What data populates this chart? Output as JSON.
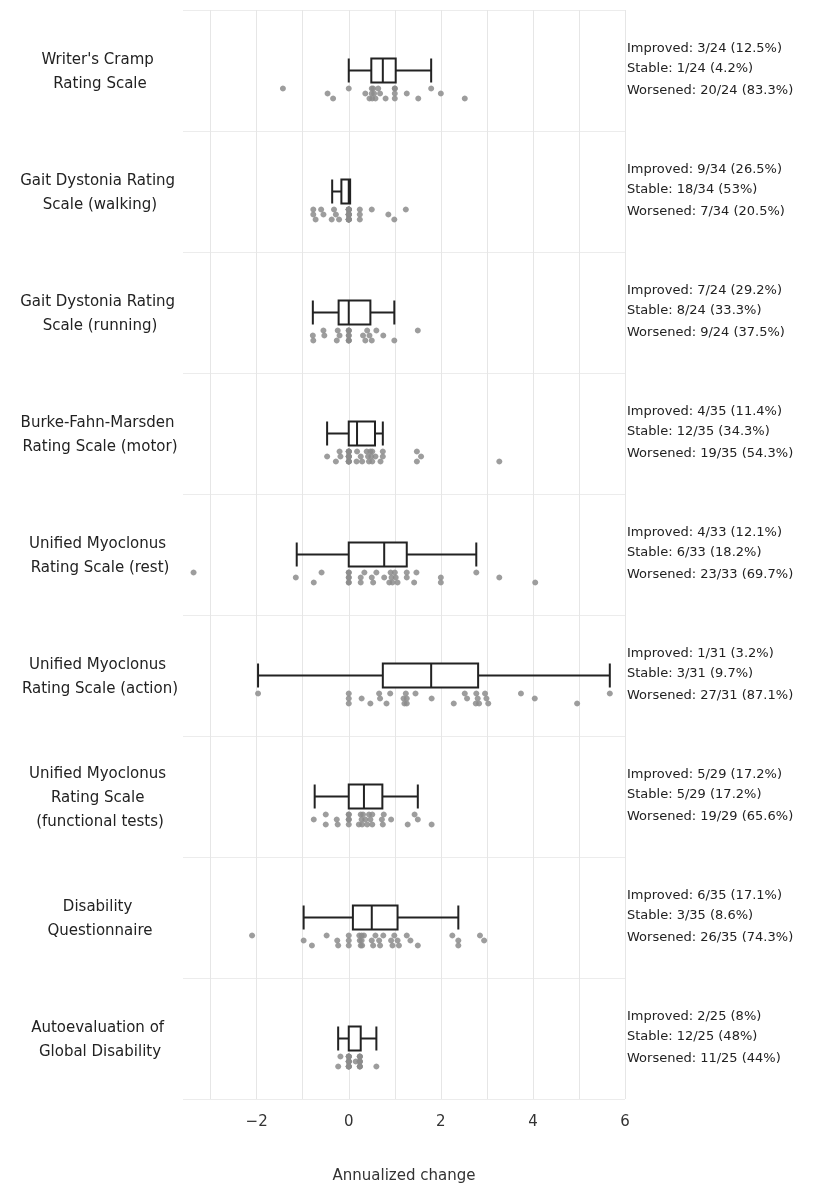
{
  "chart_data": {
    "type": "box",
    "orientation": "horizontal",
    "xlabel": "Annualized change",
    "categories": [
      "Writer's Cramp Rating Scale",
      "Gait Dystonia Rating Scale (walking)",
      "Gait Dystonia Rating Scale (running)",
      "Burke-Fahn-Marsden Rating Scale (motor)",
      "Unified Myoclonus Rating Scale (rest)",
      "Unified Myoclonus Rating Scale (action)",
      "Unified Myoclonus Rating Scale (functional tests)",
      "Disability Questionnaire",
      "Autoevaluation of Global Disability"
    ],
    "color": "#222222",
    "boxes": [
      {
        "low": 0,
        "q1": 0.49,
        "median": 0.74,
        "q3": 1.02,
        "high": 1.79
      },
      {
        "low": -0.36,
        "q1": -0.16,
        "median": 0,
        "q3": 0.03,
        "high": 0.03
      },
      {
        "low": -0.78,
        "q1": -0.22,
        "median": 0,
        "q3": 0.47,
        "high": 0.99
      },
      {
        "low": -0.47,
        "q1": 0,
        "median": 0.18,
        "q3": 0.57,
        "high": 0.74
      },
      {
        "low": -1.13,
        "q1": 0,
        "median": 0.77,
        "q3": 1.26,
        "high": 2.77
      },
      {
        "low": -1.97,
        "q1": 0.74,
        "median": 1.79,
        "q3": 2.81,
        "high": 5.67
      },
      {
        "low": -0.74,
        "q1": 0,
        "median": 0.33,
        "q3": 0.73,
        "high": 1.5
      },
      {
        "low": -0.98,
        "q1": 0.09,
        "median": 0.5,
        "q3": 1.06,
        "high": 2.38
      },
      {
        "low": -0.23,
        "q1": 0,
        "median": 0,
        "q3": 0.26,
        "high": 0.6
      }
    ],
    "series": [
      {
        "type": "scatter",
        "color": "#8c8c8c",
        "x": [
          "Writer's Cramp Rating Scale",
          "Writer's Cramp Rating Scale",
          "Writer's Cramp Rating Scale",
          "Writer's Cramp Rating Scale",
          "Writer's Cramp Rating Scale",
          "Writer's Cramp Rating Scale",
          "Writer's Cramp Rating Scale",
          "Writer's Cramp Rating Scale",
          "Writer's Cramp Rating Scale",
          "Writer's Cramp Rating Scale",
          "Writer's Cramp Rating Scale",
          "Writer's Cramp Rating Scale",
          "Writer's Cramp Rating Scale",
          "Writer's Cramp Rating Scale",
          "Writer's Cramp Rating Scale",
          "Writer's Cramp Rating Scale",
          "Writer's Cramp Rating Scale",
          "Writer's Cramp Rating Scale",
          "Writer's Cramp Rating Scale",
          "Writer's Cramp Rating Scale",
          "Writer's Cramp Rating Scale",
          "Writer's Cramp Rating Scale",
          "Writer's Cramp Rating Scale",
          "Writer's Cramp Rating Scale",
          "Gait Dystonia Rating Scale (walking)",
          "Gait Dystonia Rating Scale (walking)",
          "Gait Dystonia Rating Scale (walking)",
          "Gait Dystonia Rating Scale (walking)",
          "Gait Dystonia Rating Scale (walking)",
          "Gait Dystonia Rating Scale (walking)",
          "Gait Dystonia Rating Scale (walking)",
          "Gait Dystonia Rating Scale (walking)",
          "Gait Dystonia Rating Scale (walking)",
          "Gait Dystonia Rating Scale (walking)",
          "Gait Dystonia Rating Scale (walking)",
          "Gait Dystonia Rating Scale (walking)",
          "Gait Dystonia Rating Scale (walking)",
          "Gait Dystonia Rating Scale (walking)",
          "Gait Dystonia Rating Scale (walking)",
          "Gait Dystonia Rating Scale (walking)",
          "Gait Dystonia Rating Scale (walking)",
          "Gait Dystonia Rating Scale (walking)",
          "Gait Dystonia Rating Scale (walking)",
          "Gait Dystonia Rating Scale (walking)",
          "Gait Dystonia Rating Scale (walking)",
          "Gait Dystonia Rating Scale (walking)",
          "Gait Dystonia Rating Scale (walking)",
          "Gait Dystonia Rating Scale (walking)",
          "Gait Dystonia Rating Scale (walking)",
          "Gait Dystonia Rating Scale (walking)",
          "Gait Dystonia Rating Scale (walking)",
          "Gait Dystonia Rating Scale (walking)",
          "Gait Dystonia Rating Scale (walking)",
          "Gait Dystonia Rating Scale (walking)",
          "Gait Dystonia Rating Scale (walking)",
          "Gait Dystonia Rating Scale (walking)",
          "Gait Dystonia Rating Scale (walking)",
          "Gait Dystonia Rating Scale (walking)",
          "Gait Dystonia Rating Scale (running)",
          "Gait Dystonia Rating Scale (running)",
          "Gait Dystonia Rating Scale (running)",
          "Gait Dystonia Rating Scale (running)",
          "Gait Dystonia Rating Scale (running)",
          "Gait Dystonia Rating Scale (running)",
          "Gait Dystonia Rating Scale (running)",
          "Gait Dystonia Rating Scale (running)",
          "Gait Dystonia Rating Scale (running)",
          "Gait Dystonia Rating Scale (running)",
          "Gait Dystonia Rating Scale (running)",
          "Gait Dystonia Rating Scale (running)",
          "Gait Dystonia Rating Scale (running)",
          "Gait Dystonia Rating Scale (running)",
          "Gait Dystonia Rating Scale (running)",
          "Gait Dystonia Rating Scale (running)",
          "Gait Dystonia Rating Scale (running)",
          "Gait Dystonia Rating Scale (running)",
          "Gait Dystonia Rating Scale (running)",
          "Gait Dystonia Rating Scale (running)",
          "Gait Dystonia Rating Scale (running)",
          "Gait Dystonia Rating Scale (running)",
          "Gait Dystonia Rating Scale (running)",
          "Gait Dystonia Rating Scale (running)",
          "Burke-Fahn-Marsden Rating Scale (motor)",
          "Burke-Fahn-Marsden Rating Scale (motor)",
          "Burke-Fahn-Marsden Rating Scale (motor)",
          "Burke-Fahn-Marsden Rating Scale (motor)",
          "Burke-Fahn-Marsden Rating Scale (motor)",
          "Burke-Fahn-Marsden Rating Scale (motor)",
          "Burke-Fahn-Marsden Rating Scale (motor)",
          "Burke-Fahn-Marsden Rating Scale (motor)",
          "Burke-Fahn-Marsden Rating Scale (motor)",
          "Burke-Fahn-Marsden Rating Scale (motor)",
          "Burke-Fahn-Marsden Rating Scale (motor)",
          "Burke-Fahn-Marsden Rating Scale (motor)",
          "Burke-Fahn-Marsden Rating Scale (motor)",
          "Burke-Fahn-Marsden Rating Scale (motor)",
          "Burke-Fahn-Marsden Rating Scale (motor)",
          "Burke-Fahn-Marsden Rating Scale (motor)",
          "Burke-Fahn-Marsden Rating Scale (motor)",
          "Burke-Fahn-Marsden Rating Scale (motor)",
          "Burke-Fahn-Marsden Rating Scale (motor)",
          "Burke-Fahn-Marsden Rating Scale (motor)",
          "Burke-Fahn-Marsden Rating Scale (motor)",
          "Burke-Fahn-Marsden Rating Scale (motor)",
          "Burke-Fahn-Marsden Rating Scale (motor)",
          "Burke-Fahn-Marsden Rating Scale (motor)",
          "Burke-Fahn-Marsden Rating Scale (motor)",
          "Burke-Fahn-Marsden Rating Scale (motor)",
          "Burke-Fahn-Marsden Rating Scale (motor)",
          "Burke-Fahn-Marsden Rating Scale (motor)",
          "Burke-Fahn-Marsden Rating Scale (motor)",
          "Burke-Fahn-Marsden Rating Scale (motor)",
          "Burke-Fahn-Marsden Rating Scale (motor)",
          "Burke-Fahn-Marsden Rating Scale (motor)",
          "Burke-Fahn-Marsden Rating Scale (motor)",
          "Burke-Fahn-Marsden Rating Scale (motor)",
          "Burke-Fahn-Marsden Rating Scale (motor)",
          "Unified Myoclonus Rating Scale (rest)",
          "Unified Myoclonus Rating Scale (rest)",
          "Unified Myoclonus Rating Scale (rest)",
          "Unified Myoclonus Rating Scale (rest)",
          "Unified Myoclonus Rating Scale (rest)",
          "Unified Myoclonus Rating Scale (rest)",
          "Unified Myoclonus Rating Scale (rest)",
          "Unified Myoclonus Rating Scale (rest)",
          "Unified Myoclonus Rating Scale (rest)",
          "Unified Myoclonus Rating Scale (rest)",
          "Unified Myoclonus Rating Scale (rest)",
          "Unified Myoclonus Rating Scale (rest)",
          "Unified Myoclonus Rating Scale (rest)",
          "Unified Myoclonus Rating Scale (rest)",
          "Unified Myoclonus Rating Scale (rest)",
          "Unified Myoclonus Rating Scale (rest)",
          "Unified Myoclonus Rating Scale (rest)",
          "Unified Myoclonus Rating Scale (rest)",
          "Unified Myoclonus Rating Scale (rest)",
          "Unified Myoclonus Rating Scale (rest)",
          "Unified Myoclonus Rating Scale (rest)",
          "Unified Myoclonus Rating Scale (rest)",
          "Unified Myoclonus Rating Scale (rest)",
          "Unified Myoclonus Rating Scale (rest)",
          "Unified Myoclonus Rating Scale (rest)",
          "Unified Myoclonus Rating Scale (rest)",
          "Unified Myoclonus Rating Scale (rest)",
          "Unified Myoclonus Rating Scale (rest)",
          "Unified Myoclonus Rating Scale (rest)",
          "Unified Myoclonus Rating Scale (rest)",
          "Unified Myoclonus Rating Scale (rest)",
          "Unified Myoclonus Rating Scale (rest)",
          "Unified Myoclonus Rating Scale (rest)",
          "Unified Myoclonus Rating Scale (action)",
          "Unified Myoclonus Rating Scale (action)",
          "Unified Myoclonus Rating Scale (action)",
          "Unified Myoclonus Rating Scale (action)",
          "Unified Myoclonus Rating Scale (action)",
          "Unified Myoclonus Rating Scale (action)",
          "Unified Myoclonus Rating Scale (action)",
          "Unified Myoclonus Rating Scale (action)",
          "Unified Myoclonus Rating Scale (action)",
          "Unified Myoclonus Rating Scale (action)",
          "Unified Myoclonus Rating Scale (action)",
          "Unified Myoclonus Rating Scale (action)",
          "Unified Myoclonus Rating Scale (action)",
          "Unified Myoclonus Rating Scale (action)",
          "Unified Myoclonus Rating Scale (action)",
          "Unified Myoclonus Rating Scale (action)",
          "Unified Myoclonus Rating Scale (action)",
          "Unified Myoclonus Rating Scale (action)",
          "Unified Myoclonus Rating Scale (action)",
          "Unified Myoclonus Rating Scale (action)",
          "Unified Myoclonus Rating Scale (action)",
          "Unified Myoclonus Rating Scale (action)",
          "Unified Myoclonus Rating Scale (action)",
          "Unified Myoclonus Rating Scale (action)",
          "Unified Myoclonus Rating Scale (action)",
          "Unified Myoclonus Rating Scale (action)",
          "Unified Myoclonus Rating Scale (action)",
          "Unified Myoclonus Rating Scale (action)",
          "Unified Myoclonus Rating Scale (action)",
          "Unified Myoclonus Rating Scale (action)",
          "Unified Myoclonus Rating Scale (action)",
          "Unified Myoclonus Rating Scale (functional tests)",
          "Unified Myoclonus Rating Scale (functional tests)",
          "Unified Myoclonus Rating Scale (functional tests)",
          "Unified Myoclonus Rating Scale (functional tests)",
          "Unified Myoclonus Rating Scale (functional tests)",
          "Unified Myoclonus Rating Scale (functional tests)",
          "Unified Myoclonus Rating Scale (functional tests)",
          "Unified Myoclonus Rating Scale (functional tests)",
          "Unified Myoclonus Rating Scale (functional tests)",
          "Unified Myoclonus Rating Scale (functional tests)",
          "Unified Myoclonus Rating Scale (functional tests)",
          "Unified Myoclonus Rating Scale (functional tests)",
          "Unified Myoclonus Rating Scale (functional tests)",
          "Unified Myoclonus Rating Scale (functional tests)",
          "Unified Myoclonus Rating Scale (functional tests)",
          "Unified Myoclonus Rating Scale (functional tests)",
          "Unified Myoclonus Rating Scale (functional tests)",
          "Unified Myoclonus Rating Scale (functional tests)",
          "Unified Myoclonus Rating Scale (functional tests)",
          "Unified Myoclonus Rating Scale (functional tests)",
          "Unified Myoclonus Rating Scale (functional tests)",
          "Unified Myoclonus Rating Scale (functional tests)",
          "Unified Myoclonus Rating Scale (functional tests)",
          "Unified Myoclonus Rating Scale (functional tests)",
          "Unified Myoclonus Rating Scale (functional tests)",
          "Unified Myoclonus Rating Scale (functional tests)",
          "Unified Myoclonus Rating Scale (functional tests)",
          "Unified Myoclonus Rating Scale (functional tests)",
          "Unified Myoclonus Rating Scale (functional tests)",
          "Disability Questionnaire",
          "Disability Questionnaire",
          "Disability Questionnaire",
          "Disability Questionnaire",
          "Disability Questionnaire",
          "Disability Questionnaire",
          "Disability Questionnaire",
          "Disability Questionnaire",
          "Disability Questionnaire",
          "Disability Questionnaire",
          "Disability Questionnaire",
          "Disability Questionnaire",
          "Disability Questionnaire",
          "Disability Questionnaire",
          "Disability Questionnaire",
          "Disability Questionnaire",
          "Disability Questionnaire",
          "Disability Questionnaire",
          "Disability Questionnaire",
          "Disability Questionnaire",
          "Disability Questionnaire",
          "Disability Questionnaire",
          "Disability Questionnaire",
          "Disability Questionnaire",
          "Disability Questionnaire",
          "Disability Questionnaire",
          "Disability Questionnaire",
          "Disability Questionnaire",
          "Disability Questionnaire",
          "Disability Questionnaire",
          "Disability Questionnaire",
          "Disability Questionnaire",
          "Disability Questionnaire",
          "Disability Questionnaire",
          "Disability Questionnaire",
          "Autoevaluation of Global Disability",
          "Autoevaluation of Global Disability",
          "Autoevaluation of Global Disability",
          "Autoevaluation of Global Disability",
          "Autoevaluation of Global Disability",
          "Autoevaluation of Global Disability",
          "Autoevaluation of Global Disability",
          "Autoevaluation of Global Disability",
          "Autoevaluation of Global Disability",
          "Autoevaluation of Global Disability",
          "Autoevaluation of Global Disability",
          "Autoevaluation of Global Disability",
          "Autoevaluation of Global Disability",
          "Autoevaluation of Global Disability",
          "Autoevaluation of Global Disability",
          "Autoevaluation of Global Disability",
          "Autoevaluation of Global Disability",
          "Autoevaluation of Global Disability",
          "Autoevaluation of Global Disability",
          "Autoevaluation of Global Disability",
          "Autoevaluation of Global Disability",
          "Autoevaluation of Global Disability",
          "Autoevaluation of Global Disability",
          "Autoevaluation of Global Disability",
          "Autoevaluation of Global Disability"
        ],
        "values": [
          -1.43,
          -0.46,
          -0.34,
          0,
          0.36,
          0.45,
          0.5,
          0.5,
          0.51,
          0.53,
          0.55,
          0.58,
          0.64,
          0.68,
          0.8,
          1.0,
          1.0,
          1.0,
          1.0,
          1.26,
          1.51,
          1.79,
          2.0,
          2.52,
          -0.77,
          -0.77,
          -0.72,
          -0.6,
          -0.55,
          -0.37,
          -0.32,
          -0.28,
          -0.21,
          0,
          0,
          0,
          0,
          0,
          0,
          0,
          0,
          0,
          0,
          0,
          0,
          0,
          0,
          0,
          0,
          0,
          0,
          0.24,
          0.24,
          0.24,
          0.5,
          0.86,
          0.99,
          1.24,
          -0.78,
          -0.77,
          -0.55,
          -0.53,
          -0.26,
          -0.24,
          -0.2,
          0,
          0,
          0,
          0,
          0,
          0,
          0,
          0,
          0.31,
          0.36,
          0.4,
          0.45,
          0.5,
          0.6,
          0.75,
          0.99,
          1.5,
          -0.47,
          -0.28,
          -0.2,
          -0.18,
          0,
          0,
          0,
          0,
          0,
          0,
          0,
          0,
          0,
          0,
          0,
          0,
          0.17,
          0.18,
          0.26,
          0.29,
          0.39,
          0.42,
          0.44,
          0.47,
          0.49,
          0.51,
          0.51,
          0.58,
          0.69,
          0.74,
          0.74,
          1.48,
          1.48,
          1.57,
          3.27,
          -3.37,
          -1.15,
          -0.76,
          -0.59,
          0,
          0,
          0,
          0,
          0,
          0,
          0.26,
          0.26,
          0.34,
          0.5,
          0.53,
          0.6,
          0.77,
          0.88,
          0.91,
          0.93,
          0.95,
          1.0,
          1.02,
          1.06,
          1.26,
          1.26,
          1.42,
          1.47,
          2.0,
          2.0,
          2.77,
          3.27,
          4.05,
          -1.97,
          0,
          0,
          0,
          0.28,
          0.47,
          0.66,
          0.68,
          0.82,
          0.9,
          1.19,
          1.21,
          1.24,
          1.26,
          1.26,
          1.45,
          1.8,
          2.28,
          2.52,
          2.57,
          2.76,
          2.77,
          2.8,
          2.83,
          2.96,
          2.99,
          3.03,
          3.74,
          4.04,
          4.96,
          5.67,
          -0.76,
          -0.5,
          -0.5,
          -0.26,
          -0.24,
          0,
          0,
          0,
          0,
          0,
          0.22,
          0.26,
          0.28,
          0.29,
          0.31,
          0.36,
          0.4,
          0.44,
          0.47,
          0.51,
          0.51,
          0.72,
          0.74,
          0.76,
          0.92,
          1.28,
          1.43,
          1.5,
          1.8,
          -2.1,
          -0.98,
          -0.8,
          -0.48,
          -0.25,
          -0.23,
          0,
          0,
          0,
          0.23,
          0.24,
          0.26,
          0.28,
          0.28,
          0.29,
          0.33,
          0.5,
          0.53,
          0.58,
          0.66,
          0.68,
          0.75,
          0.92,
          0.95,
          0.99,
          1.06,
          1.09,
          1.26,
          1.34,
          1.5,
          2.25,
          2.38,
          2.38,
          2.85,
          2.94,
          -0.23,
          -0.18,
          0,
          0,
          0,
          0,
          0,
          0,
          0,
          0,
          0,
          0,
          0,
          0,
          0.15,
          0.24,
          0.24,
          0.24,
          0.24,
          0.24,
          0.24,
          0.24,
          0.24,
          0.24,
          0.6
        ]
      }
    ],
    "xlim": [
      -3.6,
      6
    ],
    "xticks": [
      {
        "value": -3,
        "label": null
      },
      {
        "value": -2,
        "label": "−2"
      },
      {
        "value": -1,
        "label": null
      },
      0,
      {
        "value": 1,
        "label": null
      },
      2,
      {
        "value": 3,
        "label": null
      },
      4,
      {
        "value": 5,
        "label": null
      },
      6
    ],
    "grid": true,
    "marker": "circle",
    "annotations": [
      "Improved: 3/24 (12.5%)",
      "Stable: 1/24 (4.2%)",
      "Worsened: 20/24 (83.3%)",
      "Improved: 9/34 (26.5%)",
      "Stable: 18/34 (53%)",
      "Worsened: 7/34 (20.5%)",
      "Improved: 7/24 (29.2%)",
      "Stable: 8/24 (33.3%)",
      "Worsened: 9/24 (37.5%)",
      "Improved: 4/35 (11.4%)",
      "Stable: 12/35 (34.3%)",
      "Worsened: 19/35 (54.3%)",
      "Improved: 4/33 (12.1%)",
      "Stable: 6/33 (18.2%)",
      "Worsened: 23/33 (69.7%)",
      "Improved: 1/31 (3.2%)",
      "Stable: 3/31 (9.7%)",
      "Worsened: 27/31 (87.1%)",
      "Improved: 5/29 (17.2%)",
      "Stable: 5/29 (17.2%)",
      "Worsened: 19/29 (65.6%)",
      "Improved: 6/35 (17.1%)",
      "Stable: 3/35 (8.6%)",
      "Worsened: 26/35 (74.3%)",
      "Improved: 2/25 (8%)",
      "Stable: 12/25 (48%)",
      "Worsened: 11/25 (44%)"
    ]
  }
}
